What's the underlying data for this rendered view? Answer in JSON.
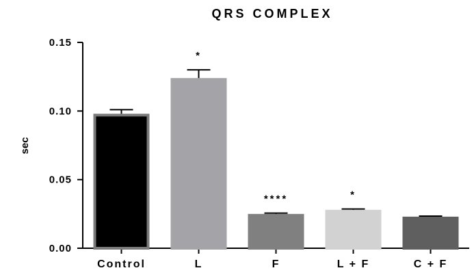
{
  "chart_data": {
    "type": "bar",
    "title": "QRS COMPLEX",
    "xlabel": "",
    "ylabel": "sec",
    "ylim": [
      0,
      0.15
    ],
    "yticks": [
      "0.00",
      "0.05",
      "0.10",
      "0.15"
    ],
    "yticks_values": [
      0,
      0.05,
      0.1,
      0.15
    ],
    "grid": false,
    "legend": "none",
    "categories": [
      "Control",
      "L",
      "F",
      "L + F",
      "C + F"
    ],
    "series": [
      {
        "values": [
          0.098,
          0.124,
          0.025,
          0.028,
          0.023
        ],
        "errors": [
          0.003,
          0.006,
          0.0006,
          0.0006,
          0.0004
        ],
        "annotations": [
          "",
          "*",
          "****",
          "*",
          ""
        ],
        "colors": [
          "#000000",
          "#a3a3a8",
          "#808080",
          "#d2d2d2",
          "#5f5f5f"
        ],
        "edge_colors": [
          "#7a7a7a",
          "#a3a3a8",
          "#808080",
          "#d2d2d2",
          "#5f5f5f"
        ]
      }
    ]
  }
}
